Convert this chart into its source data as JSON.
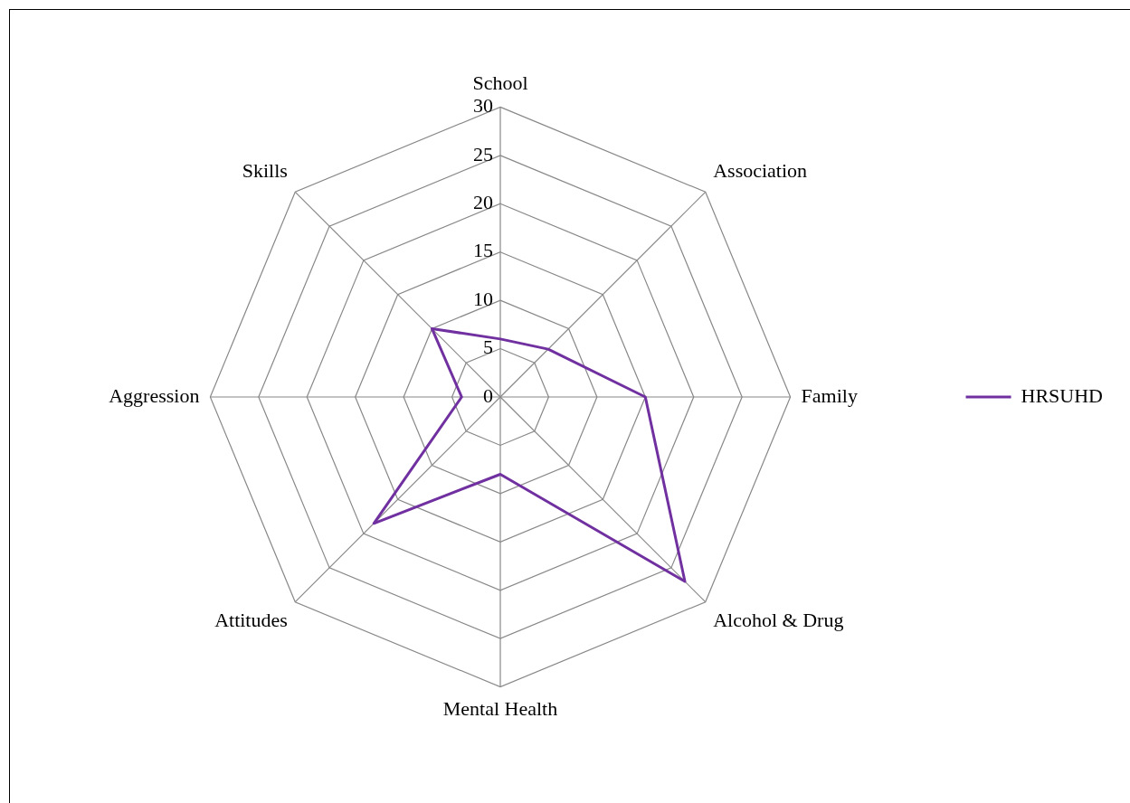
{
  "chart_data": {
    "type": "radar",
    "categories": [
      "School",
      "Association",
      "Family",
      "Alcohol & Drug",
      "Mental Health",
      "Attitudes",
      "Aggression",
      "Skills"
    ],
    "series": [
      {
        "name": "HRSUHD",
        "color": "#7030a0",
        "values": [
          6,
          7,
          15,
          27,
          8,
          18.5,
          4,
          10
        ]
      }
    ],
    "ylim": [
      0,
      30
    ],
    "yticks": [
      0,
      5,
      10,
      15,
      20,
      25,
      30
    ],
    "grid": true,
    "legend": "right",
    "marker": "none"
  }
}
